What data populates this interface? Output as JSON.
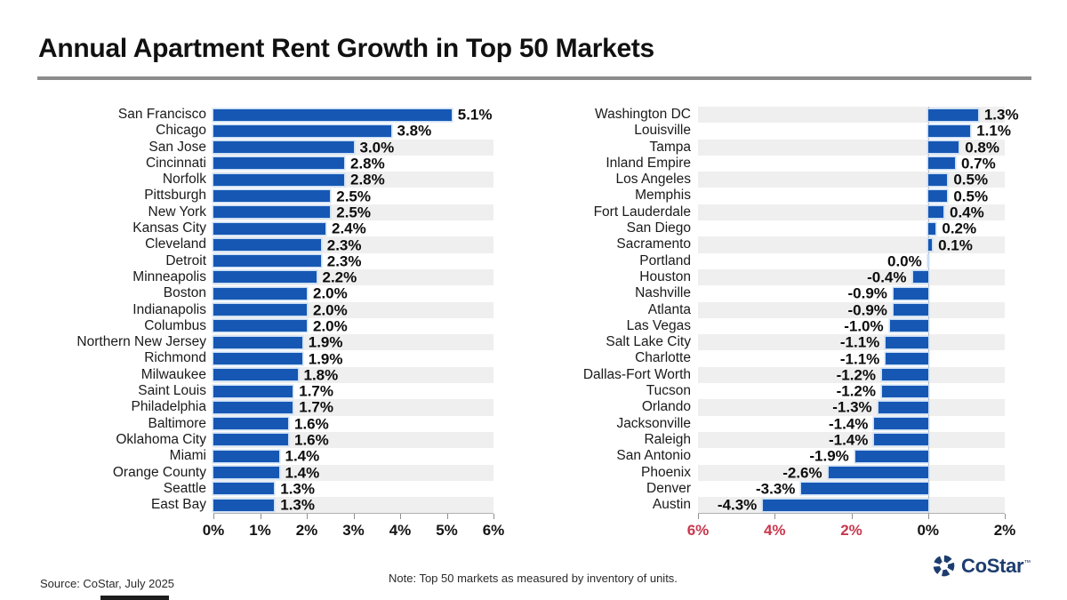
{
  "title": "Annual Apartment Rent Growth in Top 50 Markets",
  "colors": {
    "bar_blue": "#1657b4",
    "bar_halo": "#c9def5",
    "stripe": "#efeff0",
    "tick_red": "#c8374d",
    "axis_line": "#b0b0b0",
    "zero_line": "#b5b5b5",
    "logo_navy": "#1d3d6e"
  },
  "chart_data": [
    {
      "type": "bar",
      "orientation": "horizontal",
      "panel": "positive-growth-markets",
      "xlim": [
        0,
        6
      ],
      "grid": false,
      "categories": [
        "San Francisco",
        "Chicago",
        "San Jose",
        "Cincinnati",
        "Norfolk",
        "Pittsburgh",
        "New York",
        "Kansas City",
        "Cleveland",
        "Detroit",
        "Minneapolis",
        "Boston",
        "Indianapolis",
        "Columbus",
        "Northern New Jersey",
        "Richmond",
        "Milwaukee",
        "Saint Louis",
        "Philadelphia",
        "Baltimore",
        "Oklahoma City",
        "Miami",
        "Orange County",
        "Seattle",
        "East Bay"
      ],
      "values": [
        5.1,
        3.8,
        3.0,
        2.8,
        2.8,
        2.5,
        2.5,
        2.4,
        2.3,
        2.3,
        2.2,
        2.0,
        2.0,
        2.0,
        1.9,
        1.9,
        1.8,
        1.7,
        1.7,
        1.6,
        1.6,
        1.4,
        1.4,
        1.3,
        1.3
      ],
      "value_labels": [
        "5.1%",
        "3.8%",
        "3.0%",
        "2.8%",
        "2.8%",
        "2.5%",
        "2.5%",
        "2.4%",
        "2.3%",
        "2.3%",
        "2.2%",
        "2.0%",
        "2.0%",
        "2.0%",
        "1.9%",
        "1.9%",
        "1.8%",
        "1.7%",
        "1.7%",
        "1.6%",
        "1.6%",
        "1.4%",
        "1.4%",
        "1.3%",
        "1.3%"
      ],
      "ticks": [
        {
          "label": "0%",
          "value": 0,
          "red": false
        },
        {
          "label": "1%",
          "value": 1,
          "red": false
        },
        {
          "label": "2%",
          "value": 2,
          "red": false
        },
        {
          "label": "3%",
          "value": 3,
          "red": false
        },
        {
          "label": "4%",
          "value": 4,
          "red": false
        },
        {
          "label": "5%",
          "value": 5,
          "red": false
        },
        {
          "label": "6%",
          "value": 6,
          "red": false
        }
      ]
    },
    {
      "type": "bar",
      "orientation": "horizontal",
      "panel": "negative-growth-markets",
      "xlim": [
        -6,
        2
      ],
      "grid": false,
      "categories": [
        "Washington DC",
        "Louisville",
        "Tampa",
        "Inland Empire",
        "Los Angeles",
        "Memphis",
        "Fort Lauderdale",
        "San Diego",
        "Sacramento",
        "Portland",
        "Houston",
        "Nashville",
        "Atlanta",
        "Las Vegas",
        "Salt Lake City",
        "Charlotte",
        "Dallas-Fort Worth",
        "Tucson",
        "Orlando",
        "Jacksonville",
        "Raleigh",
        "San Antonio",
        "Phoenix",
        "Denver",
        "Austin"
      ],
      "values": [
        1.3,
        1.1,
        0.8,
        0.7,
        0.5,
        0.5,
        0.4,
        0.2,
        0.1,
        0.0,
        -0.4,
        -0.9,
        -0.9,
        -1.0,
        -1.1,
        -1.1,
        -1.2,
        -1.2,
        -1.3,
        -1.4,
        -1.4,
        -1.9,
        -2.6,
        -3.3,
        -4.3
      ],
      "value_labels": [
        "1.3%",
        "1.1%",
        "0.8%",
        "0.7%",
        "0.5%",
        "0.5%",
        "0.4%",
        "0.2%",
        "0.1%",
        "0.0%",
        "-0.4%",
        "-0.9%",
        "-0.9%",
        "-1.0%",
        "-1.1%",
        "-1.1%",
        "-1.2%",
        "-1.2%",
        "-1.3%",
        "-1.4%",
        "-1.4%",
        "-1.9%",
        "-2.6%",
        "-3.3%",
        "-4.3%"
      ],
      "ticks": [
        {
          "label": "6%",
          "value": -6,
          "red": true
        },
        {
          "label": "4%",
          "value": -4,
          "red": true
        },
        {
          "label": "2%",
          "value": -2,
          "red": true
        },
        {
          "label": "0%",
          "value": 0,
          "red": false
        },
        {
          "label": "2%",
          "value": 2,
          "red": false
        }
      ]
    }
  ],
  "footer": {
    "source": "Source: CoStar, July 2025",
    "note": "Note: Top 50 markets as measured by inventory of units.",
    "logo_text": "CoStar",
    "logo_tm": "™"
  }
}
